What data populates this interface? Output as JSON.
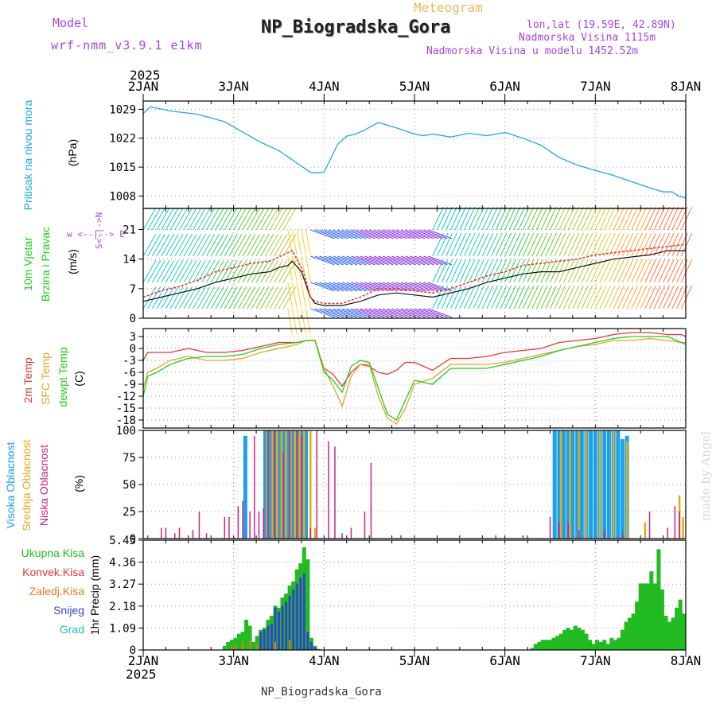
{
  "header": {
    "model_label": "Model",
    "model_name": "wrf-nmm_v3.9.1 e1km",
    "meteogram_label": "Meteogram",
    "station_title": "NP_Biogradska_Gora",
    "lonlat": "lon,lat (19.59E, 42.89N)",
    "elevation": "Nadmorska Visina 1115m",
    "model_elevation": "Nadmorska Visina u modelu 1452.52m",
    "footer_title": "NP_Biogradska_Gora",
    "watermark": "made by Angel"
  },
  "colors": {
    "pressure": "#22a6e6",
    "temp2m": "#ee3333",
    "sfc_temp": "#e8a02a",
    "dewpt": "#22cc22",
    "high_cloud": "#1aa2e8",
    "mid_cloud": "#e8a817",
    "low_cloud": "#cc2288",
    "total_precip": "#22bb22",
    "conv_precip": "#ee3333",
    "frozen_precip": "#ee7722",
    "snow": "#3344cc",
    "graupel": "#22bbbb",
    "title_purple": "#aa44dd",
    "meteogram_orange": "#e8b860"
  },
  "chart_data": [
    {
      "id": "pressure",
      "type": "line",
      "title": "",
      "ylabel": "Pritisak na nivou mora",
      "unit": "(hPa)",
      "ylim": [
        1005,
        1031
      ],
      "yticks": [
        1008,
        1015,
        1022,
        1029
      ],
      "x_top_year": "2025",
      "x_ticks": [
        "2JAN",
        "3JAN",
        "4JAN",
        "5JAN",
        "6JAN",
        "7JAN",
        "8JAN"
      ],
      "x": [
        0,
        0.08,
        0.3,
        0.6,
        0.9,
        1.1,
        1.3,
        1.5,
        1.7,
        1.8,
        1.85,
        1.9,
        2.0,
        2.05,
        2.15,
        2.25,
        2.35,
        2.45,
        2.6,
        2.8,
        3.0,
        3.1,
        3.2,
        3.4,
        3.6,
        3.8,
        4.0,
        4.2,
        4.4,
        4.6,
        4.8,
        5.0,
        5.2,
        5.4,
        5.6,
        5.75,
        5.85,
        5.92,
        6.0
      ],
      "values": [
        1028.0,
        1029.6,
        1028.6,
        1027.8,
        1026.0,
        1023.5,
        1021.0,
        1019.0,
        1016.0,
        1014.5,
        1013.7,
        1013.6,
        1013.8,
        1016.0,
        1020.5,
        1022.5,
        1023.0,
        1024.0,
        1025.8,
        1024.5,
        1023.0,
        1022.6,
        1023.0,
        1022.3,
        1023.2,
        1022.6,
        1023.4,
        1022.0,
        1020.3,
        1017.3,
        1015.5,
        1014.2,
        1013.0,
        1011.5,
        1010.0,
        1009.0,
        1009.0,
        1008.0,
        1007.5
      ]
    },
    {
      "id": "wind",
      "type": "line",
      "ylabel": "10m Vjetar",
      "ylabel2": "Brzina i Pravac",
      "unit": "(m/s)",
      "compass": "w <--|--> E",
      "compass2": "S<-|->N",
      "ylim": [
        0,
        26
      ],
      "yticks": [
        0,
        7,
        14,
        21
      ],
      "x": [
        0,
        0.2,
        0.4,
        0.6,
        0.8,
        1.0,
        1.2,
        1.4,
        1.5,
        1.6,
        1.65,
        1.75,
        1.8,
        1.85,
        1.9,
        2.0,
        2.2,
        2.4,
        2.6,
        2.8,
        3.0,
        3.2,
        3.4,
        3.6,
        3.8,
        4.0,
        4.2,
        4.4,
        4.6,
        4.8,
        5.0,
        5.2,
        5.4,
        5.6,
        5.8,
        6.0
      ],
      "series": [
        {
          "name": "speed",
          "color": "#111111",
          "values": [
            4,
            5,
            6,
            7,
            8.5,
            9.5,
            10.5,
            11,
            12,
            12.5,
            13.5,
            11,
            8,
            5,
            3.5,
            3,
            3,
            4,
            5.5,
            6,
            5.5,
            5,
            6,
            7,
            8.5,
            9.5,
            10.5,
            11,
            11,
            12,
            13,
            14,
            14.5,
            15,
            16,
            16
          ]
        },
        {
          "name": "gust",
          "color": "#ee3333",
          "values": [
            5,
            6.5,
            7.5,
            9,
            11,
            12,
            13,
            13.5,
            14.5,
            15.5,
            16,
            12,
            9,
            5,
            4,
            3.5,
            3.5,
            5,
            7,
            7,
            6.5,
            6,
            7,
            8.5,
            10,
            11,
            12.5,
            13,
            13.5,
            14,
            15,
            15.5,
            16,
            16.5,
            17,
            17.5
          ]
        }
      ]
    },
    {
      "id": "temperature",
      "type": "line",
      "ylabel": "2m Temp",
      "ylabel2": "SFC Temp",
      "ylabel3": "dewpt Temp",
      "unit": "(C)",
      "ylim": [
        -20,
        5
      ],
      "yticks": [
        -18,
        -15,
        -12,
        -9,
        -6,
        -3,
        0,
        3
      ],
      "x": [
        0,
        0.05,
        0.15,
        0.3,
        0.5,
        0.7,
        0.9,
        1.1,
        1.3,
        1.5,
        1.7,
        1.8,
        1.9,
        2.0,
        2.1,
        2.2,
        2.3,
        2.4,
        2.5,
        2.6,
        2.7,
        2.8,
        2.9,
        3.0,
        3.2,
        3.4,
        3.6,
        3.8,
        4.0,
        4.2,
        4.4,
        4.6,
        4.8,
        5.0,
        5.2,
        5.4,
        5.6,
        5.8,
        5.95,
        6.0
      ],
      "series": [
        {
          "name": "2m Temp",
          "values": [
            -3,
            -1,
            -1,
            -1,
            0,
            -1,
            -1,
            -0.5,
            0.5,
            1.5,
            1.5,
            2,
            2,
            -5,
            -6.5,
            -9.5,
            -6,
            -4,
            -4.5,
            -6,
            -6.5,
            -5.5,
            -3.5,
            -3.5,
            -5.5,
            -2.5,
            -2.5,
            -2,
            -1,
            -0.5,
            0,
            1.5,
            2,
            2.5,
            3.5,
            4,
            4,
            3.5,
            3.5,
            3
          ]
        },
        {
          "name": "SFC Temp",
          "values": [
            -10,
            -6,
            -5,
            -3,
            -2,
            -3,
            -3,
            -2.5,
            -1,
            0,
            1,
            2,
            2,
            -5,
            -9.5,
            -14.5,
            -7,
            -4,
            -4,
            -12,
            -17.5,
            -19,
            -15,
            -9,
            -7.5,
            -4,
            -4,
            -4,
            -3.5,
            -2.5,
            -1.5,
            -0.5,
            0.5,
            1,
            2,
            2,
            2.5,
            2,
            1.5,
            1.5
          ]
        },
        {
          "name": "dewpt Temp",
          "values": [
            -12,
            -7,
            -6,
            -4,
            -2.5,
            -2,
            -2,
            -1.5,
            0,
            1,
            1.5,
            2,
            2,
            -6,
            -8,
            -11,
            -4.5,
            -3,
            -3.5,
            -10,
            -16.5,
            -18,
            -13,
            -8,
            -9,
            -5,
            -5,
            -5,
            -4,
            -3,
            -2,
            -0.5,
            0.5,
            1.5,
            2.5,
            3,
            3,
            3,
            1.5,
            1
          ]
        }
      ]
    },
    {
      "id": "cloud",
      "type": "bar",
      "ylabel": "Visoka Oblacnost",
      "ylabel2": "Srednja Oblacnost",
      "ylabel3": "Niska Oblacnost",
      "unit": "(%)",
      "ylim": [
        0,
        100
      ],
      "yticks": [
        0,
        25,
        50,
        75,
        100
      ],
      "series": [
        {
          "name": "Visoka Oblacnost",
          "x": [
            1.13,
            1.35,
            1.4,
            1.45,
            1.5,
            1.55,
            1.6,
            1.65,
            1.7,
            1.75,
            1.8,
            4.55,
            4.6,
            4.65,
            4.7,
            4.75,
            4.8,
            4.85,
            4.9,
            4.95,
            5.0,
            5.05,
            5.1,
            5.15,
            5.2,
            5.25,
            5.3,
            5.35
          ],
          "values": [
            95,
            100,
            100,
            100,
            100,
            100,
            100,
            100,
            100,
            100,
            100,
            100,
            100,
            100,
            100,
            100,
            100,
            100,
            100,
            100,
            100,
            100,
            100,
            100,
            100,
            100,
            92,
            95
          ]
        },
        {
          "name": "Srednja Oblacnost",
          "x": [
            1.37,
            1.43,
            1.48,
            1.53,
            1.58,
            1.63,
            1.68,
            1.73,
            1.78,
            1.85,
            1.9,
            4.62,
            4.72,
            4.82,
            4.9,
            5.05,
            5.2,
            5.35,
            5.55,
            5.93,
            5.97
          ],
          "values": [
            100,
            100,
            100,
            100,
            100,
            100,
            100,
            100,
            100,
            100,
            10,
            100,
            100,
            100,
            100,
            100,
            100,
            90,
            15,
            40,
            20
          ]
        },
        {
          "name": "Niska Oblacnost",
          "x": [
            0.05,
            0.2,
            0.25,
            0.35,
            0.4,
            0.55,
            0.62,
            0.7,
            0.9,
            0.95,
            1.05,
            1.1,
            1.18,
            1.23,
            1.28,
            1.33,
            1.38,
            1.45,
            1.55,
            1.62,
            1.7,
            1.75,
            1.85,
            1.92,
            2.05,
            2.12,
            2.2,
            2.3,
            2.45,
            2.52,
            2.85,
            3.5,
            3.9,
            4.2,
            4.5,
            4.6,
            4.7,
            4.82,
            5.1,
            5.3,
            5.6,
            5.8,
            5.88,
            5.93
          ],
          "values": [
            3,
            10,
            10,
            5,
            10,
            8,
            25,
            5,
            20,
            20,
            30,
            35,
            25,
            95,
            25,
            28,
            100,
            100,
            80,
            100,
            100,
            95,
            10,
            100,
            90,
            85,
            5,
            10,
            25,
            70,
            3,
            3,
            3,
            3,
            20,
            15,
            15,
            8,
            8,
            5,
            25,
            10,
            30,
            25
          ]
        }
      ]
    },
    {
      "id": "precip",
      "type": "bar",
      "ylabel": "1hr Precip",
      "unit": "(mm)",
      "legend": [
        "Ukupna Kisa",
        "Konvek.Kisa",
        "Zaledj.Kisa",
        "Snijeg",
        "Grad"
      ],
      "ylim": [
        0,
        5.45
      ],
      "yticks": [
        "0",
        "1.09",
        "2.18",
        "3.27",
        "4.36",
        "5.45"
      ],
      "x_bottom_year": "2025",
      "x_ticks": [
        "2JAN",
        "3JAN",
        "4JAN",
        "5JAN",
        "6JAN",
        "7JAN",
        "8JAN"
      ],
      "series": [
        {
          "name": "Ukupna Kisa",
          "x": [
            0.9,
            0.94,
            0.98,
            1.02,
            1.06,
            1.1,
            1.14,
            1.18,
            1.22,
            1.26,
            1.3,
            1.34,
            1.38,
            1.42,
            1.46,
            1.5,
            1.54,
            1.58,
            1.62,
            1.66,
            1.7,
            1.74,
            1.78,
            1.82,
            1.86,
            1.9,
            1.94,
            4.3,
            4.34,
            4.38,
            4.42,
            4.46,
            4.5,
            4.54,
            4.58,
            4.62,
            4.66,
            4.7,
            4.74,
            4.78,
            4.82,
            4.86,
            4.9,
            4.94,
            4.98,
            5.02,
            5.06,
            5.1,
            5.14,
            5.18,
            5.22,
            5.26,
            5.3,
            5.34,
            5.38,
            5.42,
            5.46,
            5.5,
            5.54,
            5.58,
            5.62,
            5.66,
            5.7,
            5.74,
            5.78,
            5.82,
            5.86,
            5.9,
            5.94,
            5.98
          ],
          "values": [
            0.2,
            0.4,
            0.5,
            0.6,
            0.8,
            0.9,
            1.5,
            1.2,
            0.4,
            0.7,
            1.0,
            1.1,
            1.5,
            1.7,
            2.2,
            2.1,
            2.6,
            2.8,
            3.2,
            3.4,
            4.0,
            4.3,
            5.1,
            4.5,
            0.6,
            0.2,
            0.05,
            0.1,
            0.3,
            0.4,
            0.5,
            0.5,
            0.5,
            0.6,
            0.7,
            0.8,
            1.0,
            1.1,
            1.0,
            1.2,
            1.1,
            1.0,
            0.8,
            0.5,
            0.3,
            0.5,
            0.4,
            0.5,
            0.3,
            0.6,
            0.5,
            0.6,
            1.0,
            1.4,
            1.6,
            1.8,
            2.4,
            3.3,
            3.3,
            3.3,
            3.9,
            3.3,
            5.0,
            3.0,
            1.7,
            1.4,
            1.6,
            2.1,
            2.5,
            1.8
          ]
        },
        {
          "name": "Snijeg",
          "x": [
            1.3,
            1.34,
            1.38,
            1.42,
            1.46,
            1.5,
            1.54,
            1.58,
            1.62,
            1.66,
            1.7,
            1.74,
            1.78,
            1.82,
            1.86,
            1.9
          ],
          "values": [
            0.9,
            1.0,
            1.2,
            1.3,
            2.1,
            1.9,
            2.2,
            2.4,
            2.7,
            3.0,
            3.3,
            3.6,
            3.8,
            0.9,
            0.4,
            0.15
          ]
        },
        {
          "name": "Zaledj.Kisa",
          "x": [
            0.98,
            1.02,
            1.1,
            1.18,
            1.26,
            1.46,
            1.62
          ],
          "values": [
            0.2,
            0.3,
            0.4,
            0.5,
            0.3,
            0.4,
            0.5
          ]
        }
      ]
    }
  ]
}
